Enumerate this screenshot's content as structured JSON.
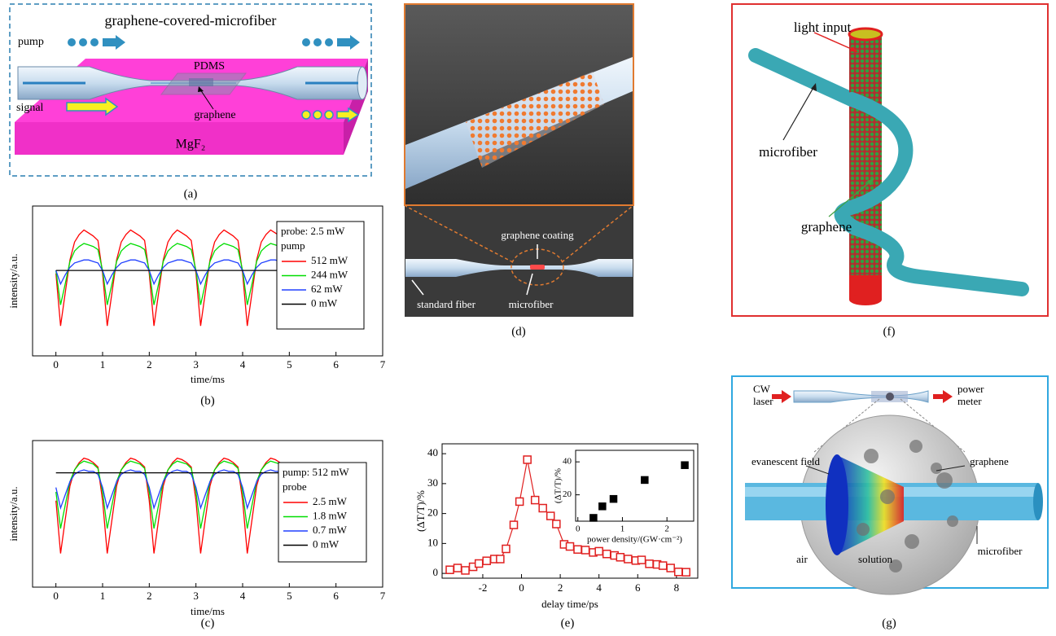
{
  "captions": [
    "(a)",
    "(b)",
    "(c)",
    "(d)",
    "(e)",
    "(f)",
    "(g)"
  ],
  "panels": {
    "a": {
      "title": "graphene-covered-microfiber",
      "pump": "pump",
      "signal": "signal",
      "pdms": "PDMS",
      "graphene": "graphene",
      "substrate": "MgF₂"
    },
    "d": {
      "coating": "graphene coating",
      "standard_fiber": "standard fiber",
      "microfiber": "microfiber"
    },
    "f": {
      "light_input": "light input",
      "microfiber": "microfiber",
      "graphene": "graphene"
    },
    "g": {
      "cw_laser": [
        "CW",
        "laser"
      ],
      "power_meter": [
        "power",
        "meter"
      ],
      "evanescent_field": "evanescent field",
      "graphene": "graphene",
      "air": "air",
      "solution": "solution",
      "microfiber": "microfiber"
    }
  },
  "chart_data": [
    {
      "type": "line",
      "xlabel": "time/ms",
      "ylabel": "intensity/a.u.",
      "xlim": [
        -0.5,
        7
      ],
      "ylim": [
        0,
        1
      ],
      "xticks": [
        0,
        1,
        2,
        3,
        4,
        5,
        6,
        7
      ],
      "legend_title": [
        "probe: 2.5 mW",
        "pump"
      ],
      "x": [
        0,
        0.1,
        0.2,
        0.3,
        0.4,
        0.5,
        0.6,
        0.7,
        0.8,
        0.9,
        1,
        1.1,
        1.2,
        1.3,
        1.4,
        1.5,
        1.6,
        1.7,
        1.8,
        1.9,
        2,
        2.1,
        2.2,
        2.3,
        2.4,
        2.5,
        2.6,
        2.7,
        2.8,
        2.9,
        3,
        3.1,
        3.2,
        3.3,
        3.4,
        3.5,
        3.6,
        3.7,
        3.8,
        3.9,
        4,
        4.1,
        4.2,
        4.3,
        4.4,
        4.5,
        4.6,
        4.7,
        4.8,
        4.9,
        5,
        5.1,
        5.2
      ],
      "series": [
        {
          "name": "512 mW",
          "color": "#ff0000",
          "values": [
            0.55,
            0.2,
            0.42,
            0.64,
            0.76,
            0.81,
            0.84,
            0.82,
            0.8,
            0.77,
            0.55,
            0.2,
            0.42,
            0.64,
            0.76,
            0.81,
            0.84,
            0.82,
            0.8,
            0.77,
            0.55,
            0.2,
            0.42,
            0.64,
            0.76,
            0.81,
            0.84,
            0.82,
            0.8,
            0.77,
            0.55,
            0.2,
            0.42,
            0.64,
            0.76,
            0.81,
            0.84,
            0.82,
            0.8,
            0.77,
            0.55,
            0.2,
            0.42,
            0.64,
            0.76,
            0.81,
            0.84,
            0.82,
            0.8,
            0.77,
            0.55,
            0.2,
            0.42
          ]
        },
        {
          "name": "244 mW",
          "color": "#00dd00",
          "values": [
            0.57,
            0.34,
            0.48,
            0.63,
            0.7,
            0.73,
            0.75,
            0.74,
            0.73,
            0.71,
            0.57,
            0.34,
            0.48,
            0.63,
            0.7,
            0.73,
            0.75,
            0.74,
            0.73,
            0.71,
            0.57,
            0.34,
            0.48,
            0.63,
            0.7,
            0.73,
            0.75,
            0.74,
            0.73,
            0.71,
            0.57,
            0.34,
            0.48,
            0.63,
            0.7,
            0.73,
            0.75,
            0.74,
            0.73,
            0.71,
            0.57,
            0.34,
            0.48,
            0.63,
            0.7,
            0.73,
            0.75,
            0.74,
            0.73,
            0.71,
            0.57,
            0.34,
            0.48
          ]
        },
        {
          "name": "62 mW",
          "color": "#2040ff",
          "values": [
            0.57,
            0.48,
            0.54,
            0.59,
            0.62,
            0.63,
            0.64,
            0.64,
            0.63,
            0.62,
            0.57,
            0.48,
            0.54,
            0.59,
            0.62,
            0.63,
            0.64,
            0.64,
            0.63,
            0.62,
            0.57,
            0.48,
            0.54,
            0.59,
            0.62,
            0.63,
            0.64,
            0.64,
            0.63,
            0.62,
            0.57,
            0.48,
            0.54,
            0.59,
            0.62,
            0.63,
            0.64,
            0.64,
            0.63,
            0.62,
            0.57,
            0.48,
            0.54,
            0.59,
            0.62,
            0.63,
            0.64,
            0.64,
            0.63,
            0.62,
            0.57,
            0.48,
            0.54
          ]
        },
        {
          "name": "0 mW",
          "color": "#000000",
          "values": [
            0.57,
            0.57,
            0.57,
            0.57,
            0.57,
            0.57,
            0.57,
            0.57,
            0.57,
            0.57,
            0.57,
            0.57,
            0.57,
            0.57,
            0.57,
            0.57,
            0.57,
            0.57,
            0.57,
            0.57,
            0.57,
            0.57,
            0.57,
            0.57,
            0.57,
            0.57,
            0.57,
            0.57,
            0.57,
            0.57,
            0.57,
            0.57,
            0.57,
            0.57,
            0.57,
            0.57,
            0.57,
            0.57,
            0.57,
            0.57,
            0.57,
            0.57,
            0.57,
            0.57,
            0.57,
            0.57,
            0.57,
            0.57,
            0.57,
            null,
            null,
            null,
            null
          ]
        }
      ]
    },
    {
      "type": "line",
      "xlabel": "time/ms",
      "ylabel": "intensity/a.u.",
      "xlim": [
        -0.5,
        7
      ],
      "ylim": [
        0,
        1
      ],
      "xticks": [
        0,
        1,
        2,
        3,
        4,
        5,
        6,
        7
      ],
      "legend_title": [
        "pump: 512 mW",
        "probe"
      ],
      "x": [
        0,
        0.1,
        0.2,
        0.3,
        0.4,
        0.5,
        0.6,
        0.7,
        0.8,
        0.9,
        1,
        1.1,
        1.2,
        1.3,
        1.4,
        1.5,
        1.6,
        1.7,
        1.8,
        1.9,
        2,
        2.1,
        2.2,
        2.3,
        2.4,
        2.5,
        2.6,
        2.7,
        2.8,
        2.9,
        3,
        3.1,
        3.2,
        3.3,
        3.4,
        3.5,
        3.6,
        3.7,
        3.8,
        3.9,
        4,
        4.1,
        4.2,
        4.3,
        4.4,
        4.5,
        4.6,
        4.7,
        4.8,
        4.9,
        5,
        5.1,
        5.2
      ],
      "series": [
        {
          "name": "2.5 mW",
          "color": "#ff0000",
          "values": [
            0.59,
            0.23,
            0.46,
            0.69,
            0.8,
            0.85,
            0.88,
            0.87,
            0.85,
            0.82,
            0.59,
            0.23,
            0.46,
            0.69,
            0.8,
            0.85,
            0.88,
            0.87,
            0.85,
            0.82,
            0.59,
            0.23,
            0.46,
            0.69,
            0.8,
            0.85,
            0.88,
            0.87,
            0.85,
            0.82,
            0.59,
            0.23,
            0.46,
            0.69,
            0.8,
            0.85,
            0.88,
            0.87,
            0.85,
            0.82,
            0.59,
            0.23,
            0.46,
            0.69,
            0.8,
            0.85,
            0.88,
            0.87,
            0.85,
            0.82,
            0.59,
            0.23,
            0.46
          ]
        },
        {
          "name": "1.8 mW",
          "color": "#00dd00",
          "values": [
            0.65,
            0.4,
            0.56,
            0.72,
            0.8,
            0.84,
            0.86,
            0.85,
            0.84,
            0.81,
            0.65,
            0.4,
            0.56,
            0.72,
            0.8,
            0.84,
            0.86,
            0.85,
            0.84,
            0.81,
            0.65,
            0.4,
            0.56,
            0.72,
            0.8,
            0.84,
            0.86,
            0.85,
            0.84,
            0.81,
            0.65,
            0.4,
            0.56,
            0.72,
            0.8,
            0.84,
            0.86,
            0.85,
            0.84,
            0.81,
            0.65,
            0.4,
            0.56,
            0.72,
            0.8,
            0.84,
            0.86,
            0.85,
            0.84,
            0.81,
            0.65,
            0.4,
            0.56
          ]
        },
        {
          "name": "0.7 mW",
          "color": "#2040ff",
          "values": [
            0.68,
            0.54,
            0.63,
            0.72,
            0.77,
            0.79,
            0.8,
            0.79,
            0.79,
            0.77,
            0.68,
            0.54,
            0.63,
            0.72,
            0.77,
            0.79,
            0.8,
            0.79,
            0.79,
            0.77,
            0.68,
            0.54,
            0.63,
            0.72,
            0.77,
            0.79,
            0.8,
            0.79,
            0.79,
            0.77,
            0.68,
            0.54,
            0.63,
            0.72,
            0.77,
            0.79,
            0.8,
            0.79,
            0.79,
            0.77,
            0.68,
            0.54,
            0.63,
            0.72,
            0.77,
            0.79,
            0.8,
            0.79,
            0.79,
            0.77,
            0.68,
            0.54,
            0.63
          ]
        },
        {
          "name": "0 mW",
          "color": "#000000",
          "values": [
            0.78,
            0.78,
            0.78,
            0.78,
            0.78,
            0.78,
            0.78,
            0.78,
            0.78,
            0.78,
            0.78,
            0.78,
            0.78,
            0.78,
            0.78,
            0.78,
            0.78,
            0.78,
            0.78,
            0.78,
            0.78,
            0.78,
            0.78,
            0.78,
            0.78,
            0.78,
            0.78,
            0.78,
            0.78,
            0.78,
            0.78,
            0.78,
            0.78,
            0.78,
            0.78,
            0.78,
            0.78,
            0.78,
            0.78,
            0.78,
            0.78,
            0.78,
            0.78,
            0.78,
            0.78,
            0.78,
            0.78,
            0.78,
            0.78,
            null,
            null,
            null,
            null
          ]
        }
      ]
    },
    {
      "type": "line",
      "marker": "square-open",
      "xlabel": "delay time/ps",
      "ylabel": "(ΔT/T)/%",
      "xlim": [
        -4.1,
        9.1
      ],
      "ylim": [
        -1.6,
        43.3
      ],
      "xticks": [
        -2,
        0,
        2,
        4,
        6,
        8
      ],
      "yticks": [
        0,
        10,
        20,
        30,
        40
      ],
      "color": "#e02020",
      "x": [
        -3.7,
        -3.3,
        -2.9,
        -2.5,
        -2.2,
        -1.8,
        -1.4,
        -1.1,
        -0.8,
        -0.4,
        -0.1,
        0.3,
        0.7,
        1.1,
        1.5,
        1.8,
        2.2,
        2.5,
        2.9,
        3.3,
        3.7,
        4.0,
        4.4,
        4.8,
        5.1,
        5.5,
        5.9,
        6.2,
        6.6,
        7.0,
        7.3,
        7.7,
        8.1,
        8.5
      ],
      "values": [
        1.2,
        1.8,
        1.0,
        2.2,
        3.3,
        4.2,
        4.8,
        4.8,
        8.2,
        16.2,
        24.0,
        38.0,
        24.5,
        21.8,
        19.2,
        16.5,
        9.7,
        9.0,
        8.0,
        7.8,
        7.0,
        7.4,
        6.5,
        6.0,
        5.4,
        4.8,
        4.3,
        4.5,
        3.2,
        3.0,
        2.6,
        1.8,
        0.5,
        0.4
      ]
    },
    {
      "type": "scatter",
      "marker": "square",
      "xlabel": "power density/(GW·cm⁻²)",
      "ylabel": "(ΔT/T)/%",
      "xlim": [
        -0.05,
        2.6
      ],
      "ylim": [
        4,
        47
      ],
      "xticks": [
        0,
        1,
        2
      ],
      "yticks": [
        20,
        40
      ],
      "color": "#000000",
      "x": [
        0.35,
        0.55,
        0.8,
        1.5,
        2.4
      ],
      "values": [
        6,
        13,
        17.5,
        29,
        38
      ]
    }
  ]
}
